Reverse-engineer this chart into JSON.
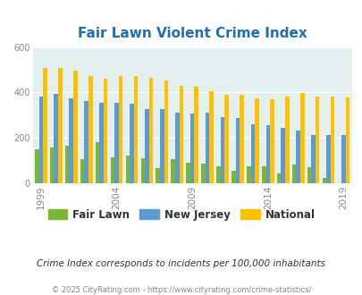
{
  "title": "Fair Lawn Violent Crime Index",
  "years": [
    1999,
    2000,
    2001,
    2002,
    2003,
    2004,
    2005,
    2006,
    2007,
    2008,
    2009,
    2010,
    2011,
    2012,
    2013,
    2014,
    2015,
    2016,
    2017,
    2018,
    2019
  ],
  "fair_lawn": [
    148,
    155,
    165,
    105,
    180,
    115,
    120,
    110,
    65,
    105,
    90,
    85,
    75,
    55,
    75,
    75,
    40,
    80,
    68,
    22,
    0
  ],
  "new_jersey": [
    383,
    393,
    375,
    362,
    355,
    355,
    350,
    325,
    328,
    310,
    305,
    310,
    290,
    285,
    260,
    255,
    245,
    230,
    210,
    210,
    210
  ],
  "national": [
    508,
    508,
    497,
    472,
    462,
    471,
    472,
    466,
    452,
    430,
    425,
    405,
    390,
    390,
    375,
    370,
    383,
    399,
    383,
    383,
    379
  ],
  "color_fair_lawn": "#7cb734",
  "color_new_jersey": "#5b9bd5",
  "color_national": "#ffc000",
  "color_title": "#1f6eb5",
  "bg_color": "#e4f0f0",
  "ylim": [
    0,
    600
  ],
  "yticks": [
    0,
    200,
    400,
    600
  ],
  "subtitle": "Crime Index corresponds to incidents per 100,000 inhabitants",
  "footer": "© 2025 CityRating.com - https://www.cityrating.com/crime-statistics/",
  "x_tick_labels": [
    "1999",
    "2004",
    "2009",
    "2014",
    "2019"
  ],
  "x_tick_positions": [
    0,
    5,
    10,
    15,
    20
  ],
  "legend_labels": [
    "Fair Lawn",
    "New Jersey",
    "National"
  ],
  "legend_label_colors": [
    "#333333",
    "#8b0000",
    "#8b0000"
  ]
}
